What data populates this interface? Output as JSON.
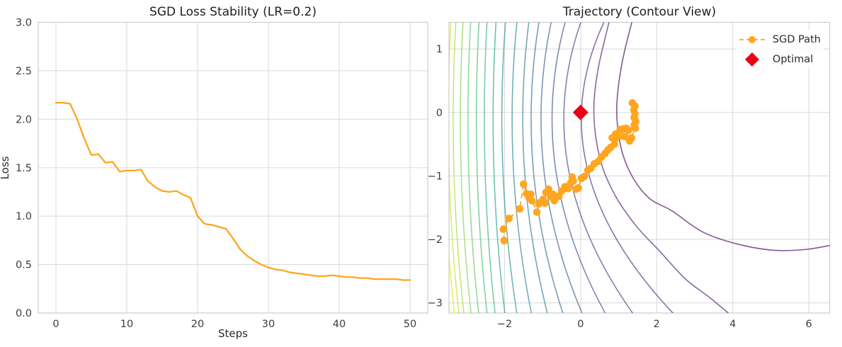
{
  "colors": {
    "orange": "#FFA51E",
    "red": "#EC0013",
    "grid": "#dcdcdc",
    "spine": "#cccccc",
    "tick_text": "#3d3d3d",
    "title_text": "#1e1e1e",
    "background": "#ffffff"
  },
  "chart_data": [
    {
      "type": "line",
      "title": "SGD Loss Stability (LR=0.2)",
      "xlabel": "Steps",
      "ylabel": "Loss",
      "xlim": [
        -2.5,
        52.5
      ],
      "ylim": [
        0,
        3.0
      ],
      "grid": true,
      "xticks": [
        0,
        10,
        20,
        30,
        40,
        50
      ],
      "xtick_labels": [
        "0",
        "10",
        "20",
        "30",
        "40",
        "50"
      ],
      "yticks": [
        0,
        0.5,
        1.0,
        1.5,
        2.0,
        2.5,
        3.0
      ],
      "ytick_labels": [
        "0.0",
        "0.5",
        "1.0",
        "1.5",
        "2.0",
        "2.5",
        "3.0"
      ],
      "series": [
        {
          "name": "loss",
          "color": "#FFA51E",
          "x": [
            0,
            1,
            2,
            3,
            4,
            5,
            6,
            7,
            8,
            9,
            10,
            11,
            12,
            13,
            14,
            15,
            16,
            17,
            18,
            19,
            20,
            21,
            22,
            23,
            24,
            25,
            26,
            27,
            28,
            29,
            30,
            31,
            32,
            33,
            34,
            35,
            36,
            37,
            38,
            39,
            40,
            41,
            42,
            43,
            44,
            45,
            46,
            47,
            48,
            49,
            50
          ],
          "y": [
            2.17,
            2.17,
            2.16,
            2.0,
            1.8,
            1.63,
            1.64,
            1.55,
            1.56,
            1.46,
            1.47,
            1.47,
            1.48,
            1.36,
            1.3,
            1.26,
            1.25,
            1.26,
            1.22,
            1.19,
            1.0,
            0.92,
            0.91,
            0.89,
            0.87,
            0.77,
            0.66,
            0.59,
            0.54,
            0.5,
            0.47,
            0.45,
            0.44,
            0.42,
            0.41,
            0.4,
            0.39,
            0.38,
            0.38,
            0.39,
            0.38,
            0.37,
            0.37,
            0.36,
            0.36,
            0.35,
            0.35,
            0.35,
            0.35,
            0.34,
            0.34
          ]
        }
      ]
    },
    {
      "type": "contour+scatter",
      "title": "Trajectory (Contour View)",
      "xlabel": "",
      "ylabel": "",
      "xlim": [
        -3.46,
        6.55
      ],
      "ylim": [
        -3.16,
        1.42
      ],
      "grid": true,
      "xticks": [
        -2,
        0,
        2,
        4,
        6
      ],
      "xtick_labels": [
        "−2",
        "0",
        "2",
        "4",
        "6"
      ],
      "yticks": [
        -3,
        -2,
        -1,
        0,
        1
      ],
      "ytick_labels": [
        "−3",
        "−2",
        "−1",
        "0",
        "1"
      ],
      "legend": [
        {
          "label": "SGD Path",
          "marker": "dashed-line-with-dot",
          "color": "#FFA51E"
        },
        {
          "label": "Optimal",
          "marker": "diamond",
          "color": "#EC0013"
        }
      ],
      "optimal_point": {
        "x": 0,
        "y": 0
      },
      "sgd_path": [
        [
          -2.01,
          -2.02
        ],
        [
          -2.03,
          -1.84
        ],
        [
          -1.88,
          -1.67
        ],
        [
          -1.6,
          -1.52
        ],
        [
          -1.5,
          -1.13
        ],
        [
          -1.42,
          -1.28
        ],
        [
          -1.36,
          -1.34
        ],
        [
          -1.31,
          -1.29
        ],
        [
          -1.28,
          -1.39
        ],
        [
          -1.15,
          -1.57
        ],
        [
          -1.1,
          -1.44
        ],
        [
          -1.06,
          -1.42
        ],
        [
          -0.99,
          -1.37
        ],
        [
          -0.94,
          -1.43
        ],
        [
          -0.91,
          -1.26
        ],
        [
          -0.84,
          -1.21
        ],
        [
          -0.78,
          -1.33
        ],
        [
          -0.72,
          -1.29
        ],
        [
          -0.69,
          -1.39
        ],
        [
          -0.64,
          -1.33
        ],
        [
          -0.57,
          -1.32
        ],
        [
          -0.5,
          -1.24
        ],
        [
          -0.41,
          -1.17
        ],
        [
          -0.33,
          -1.2
        ],
        [
          -0.26,
          -1.11
        ],
        [
          -0.22,
          -1.02
        ],
        [
          -0.19,
          -1.08
        ],
        [
          -0.12,
          -1.21
        ],
        [
          -0.06,
          -1.19
        ],
        [
          0.02,
          -1.04
        ],
        [
          0.1,
          -1.01
        ],
        [
          0.19,
          -0.91
        ],
        [
          0.27,
          -0.88
        ],
        [
          0.36,
          -0.81
        ],
        [
          0.47,
          -0.77
        ],
        [
          0.55,
          -0.7
        ],
        [
          0.64,
          -0.65
        ],
        [
          0.72,
          -0.59
        ],
        [
          0.79,
          -0.55
        ],
        [
          0.89,
          -0.5
        ],
        [
          0.83,
          -0.4
        ],
        [
          0.92,
          -0.34
        ],
        [
          1.04,
          -0.27
        ],
        [
          1.12,
          -0.26
        ],
        [
          1.2,
          -0.25
        ],
        [
          1.26,
          -0.28
        ],
        [
          1.34,
          -0.4
        ],
        [
          1.17,
          -0.38
        ],
        [
          0.99,
          -0.36
        ],
        [
          0.92,
          -0.41
        ],
        [
          1.07,
          -0.37
        ],
        [
          1.29,
          -0.45
        ],
        [
          1.44,
          -0.25
        ],
        [
          1.41,
          -0.2
        ],
        [
          1.45,
          -0.14
        ],
        [
          1.41,
          -0.08
        ],
        [
          1.43,
          -0.02
        ],
        [
          1.4,
          0.04
        ],
        [
          1.43,
          0.1
        ],
        [
          1.36,
          0.15
        ]
      ],
      "contours": {
        "note": "viridis contour family, innermost (purple) at lower right, outermost (yellow) at far left",
        "center_y": -0.1,
        "opacity": 0.65,
        "inner_arcs": [
          [
            [
              1.38,
              1.5
            ],
            [
              1.08,
              0.75
            ],
            [
              0.95,
              0.05
            ],
            [
              1.06,
              -0.55
            ],
            [
              1.35,
              -1.0
            ],
            [
              1.8,
              -1.35
            ],
            [
              2.4,
              -1.55
            ],
            [
              3.2,
              -1.88
            ],
            [
              4.1,
              -2.07
            ],
            [
              5.05,
              -2.17
            ],
            [
              5.9,
              -2.16
            ],
            [
              6.6,
              -2.09
            ]
          ],
          [
            [
              0.78,
              1.5
            ],
            [
              0.45,
              0.65
            ],
            [
              0.35,
              -0.05
            ],
            [
              0.52,
              -0.75
            ],
            [
              0.9,
              -1.3
            ],
            [
              1.45,
              -1.78
            ],
            [
              2.1,
              -2.2
            ],
            [
              2.75,
              -2.62
            ],
            [
              3.4,
              -2.92
            ],
            [
              4.0,
              -3.22
            ]
          ]
        ],
        "parabolas": [
          {
            "x0": 0.02,
            "c": 0.257
          },
          {
            "x0": -0.44,
            "c": 0.193
          },
          {
            "x0": -0.75,
            "c": 0.149
          },
          {
            "x0": -1.04,
            "c": 0.115
          },
          {
            "x0": -1.3,
            "c": 0.089
          },
          {
            "x0": -1.52,
            "c": 0.069
          },
          {
            "x0": -1.8,
            "c": 0.054
          },
          {
            "x0": -2.07,
            "c": 0.042
          },
          {
            "x0": -2.3,
            "c": 0.033
          },
          {
            "x0": -2.53,
            "c": 0.03
          },
          {
            "x0": -2.74,
            "c": 0.03
          },
          {
            "x0": -2.96,
            "c": 0.03
          },
          {
            "x0": -3.16,
            "c": 0.03
          },
          {
            "x0": -3.35,
            "c": 0.03
          },
          {
            "x0": -3.48,
            "c": 0.03
          },
          {
            "x0": -3.6,
            "c": 0.03
          },
          {
            "x0": -3.72,
            "c": 0.03
          }
        ],
        "colors": [
          "#440154",
          "#48186a",
          "#472d7b",
          "#433e85",
          "#3d4e8a",
          "#355e8d",
          "#2f6c8e",
          "#2a7a8e",
          "#25878e",
          "#21948c",
          "#1fa187",
          "#2cb17e",
          "#42bb72",
          "#5ec962",
          "#7fd34e",
          "#a2da37",
          "#c5e021",
          "#e2e418",
          "#fde725"
        ]
      }
    }
  ]
}
